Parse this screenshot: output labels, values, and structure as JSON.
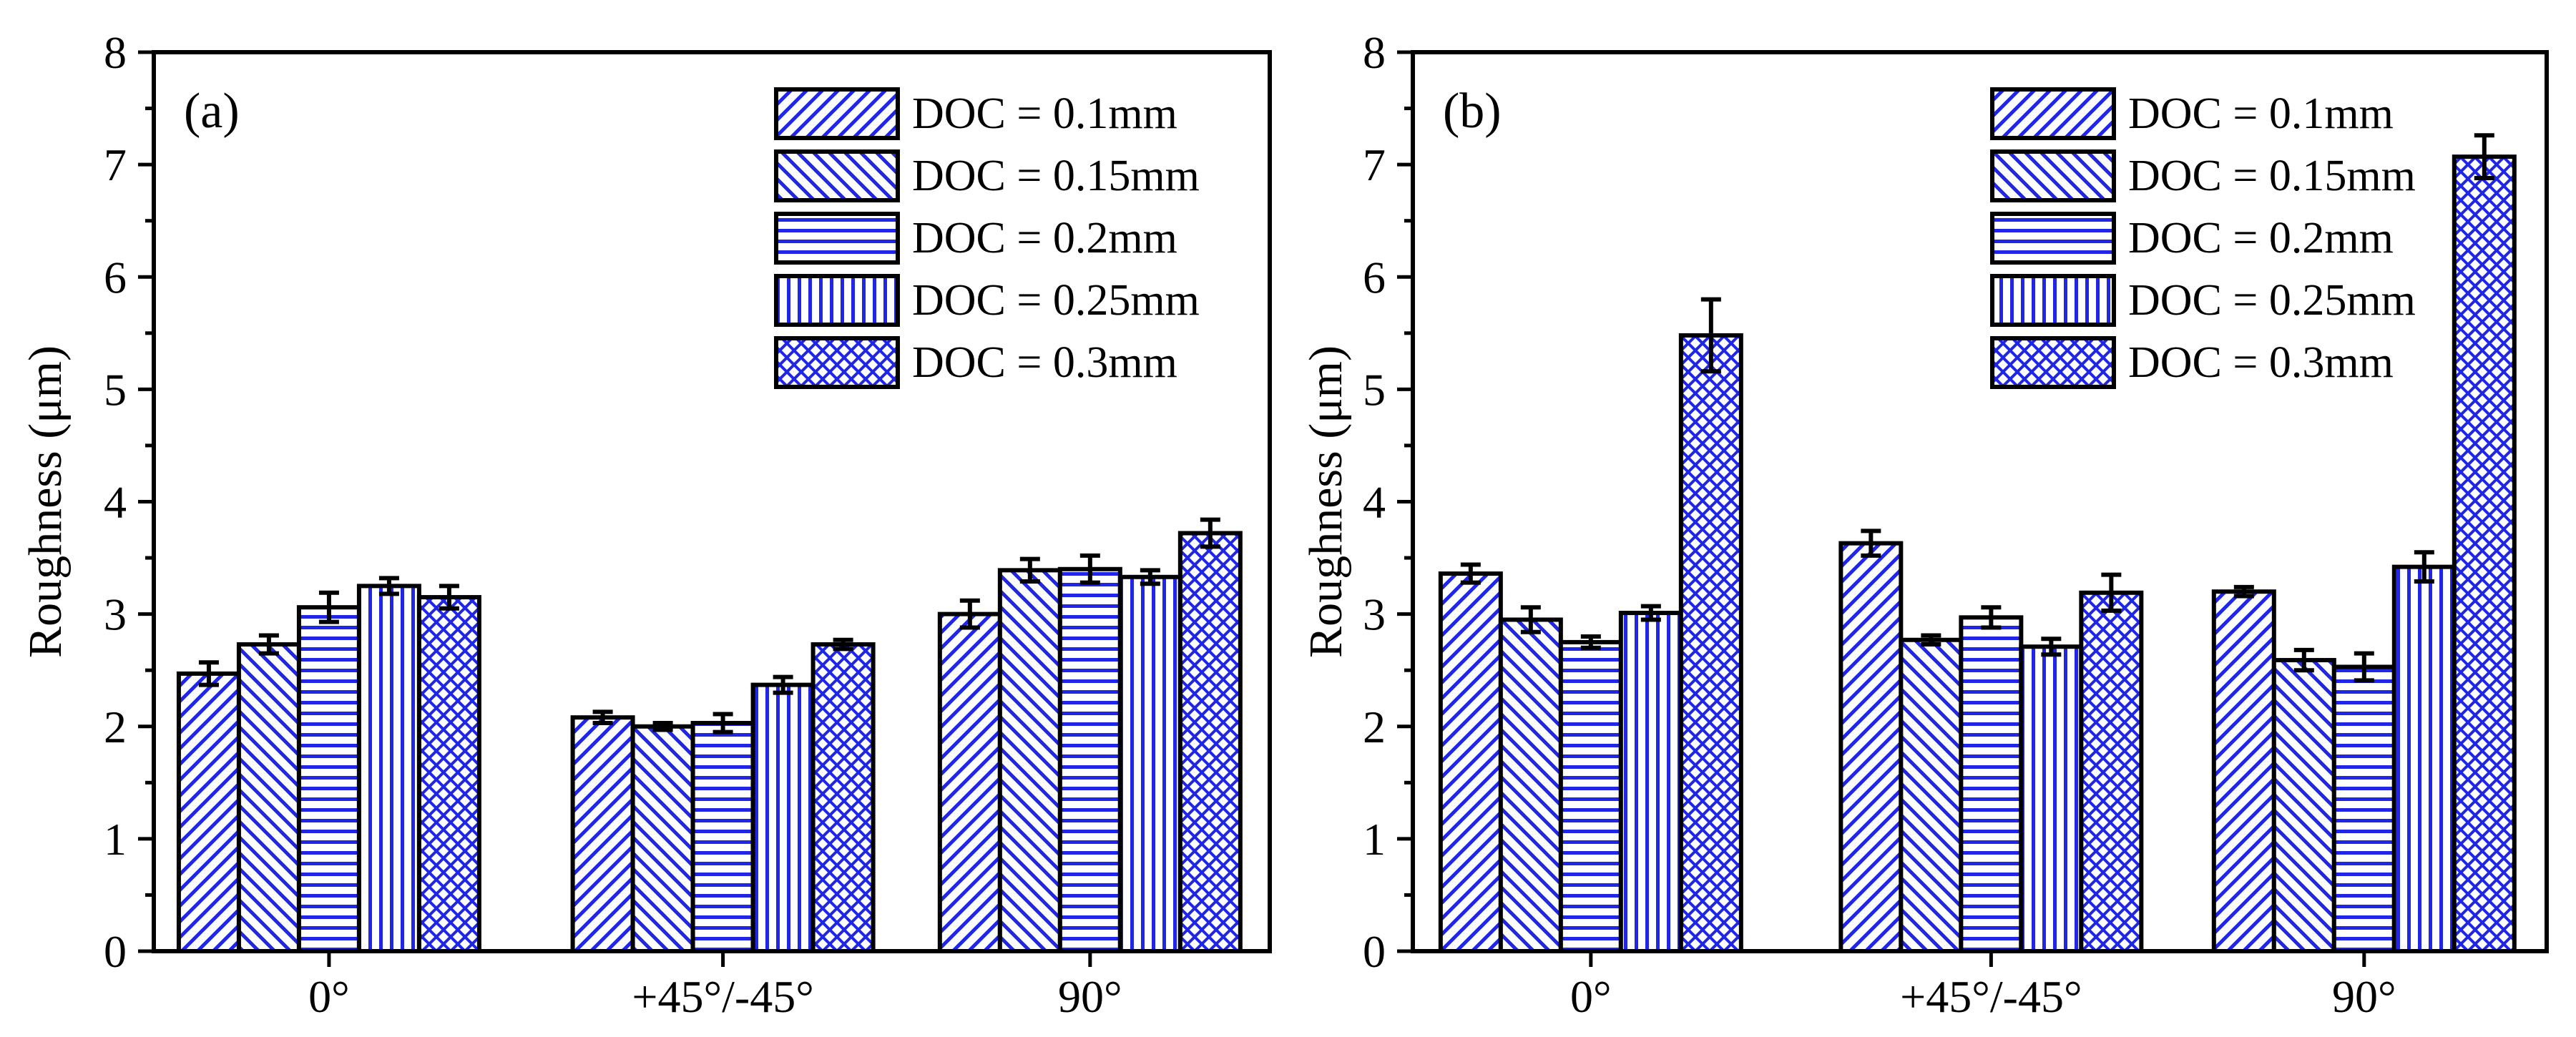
{
  "chart_data": [
    {
      "type": "bar",
      "panel_label": "(a)",
      "ylabel": "Roughness (μm)",
      "xlabel": "",
      "ylim": [
        0,
        8
      ],
      "yticks": [
        "0",
        "1",
        "2",
        "3",
        "4",
        "5",
        "6",
        "7",
        "8"
      ],
      "categories": [
        "0°",
        "+45°/-45°",
        "90°"
      ],
      "legend_position": "top-right",
      "series": [
        {
          "name": "DOC = 0.1mm",
          "pattern": "diag-up",
          "values": [
            2.47,
            2.08,
            3.0
          ],
          "errors": [
            0.1,
            0.05,
            0.12
          ]
        },
        {
          "name": "DOC = 0.15mm",
          "pattern": "diag-down",
          "values": [
            2.73,
            2.0,
            3.39
          ],
          "errors": [
            0.08,
            0.03,
            0.1
          ]
        },
        {
          "name": "DOC = 0.2mm",
          "pattern": "horizontal",
          "values": [
            3.06,
            2.03,
            3.4
          ],
          "errors": [
            0.13,
            0.08,
            0.12
          ]
        },
        {
          "name": "DOC = 0.25mm",
          "pattern": "vertical",
          "values": [
            3.25,
            2.37,
            3.33
          ],
          "errors": [
            0.07,
            0.07,
            0.06
          ]
        },
        {
          "name": "DOC = 0.3mm",
          "pattern": "crosshatch",
          "values": [
            3.15,
            2.73,
            3.72
          ],
          "errors": [
            0.1,
            0.04,
            0.12
          ]
        }
      ]
    },
    {
      "type": "bar",
      "panel_label": "(b)",
      "ylabel": "Roughness (μm)",
      "xlabel": "",
      "ylim": [
        0,
        8
      ],
      "yticks": [
        "0",
        "1",
        "2",
        "3",
        "4",
        "5",
        "6",
        "7",
        "8"
      ],
      "categories": [
        "0°",
        "+45°/-45°",
        "90°"
      ],
      "legend_position": "top-right",
      "series": [
        {
          "name": "DOC = 0.1mm",
          "pattern": "diag-up",
          "values": [
            3.36,
            3.63,
            3.2
          ],
          "errors": [
            0.08,
            0.11,
            0.04
          ]
        },
        {
          "name": "DOC = 0.15mm",
          "pattern": "diag-down",
          "values": [
            2.95,
            2.77,
            2.59
          ],
          "errors": [
            0.11,
            0.04,
            0.09
          ]
        },
        {
          "name": "DOC = 0.2mm",
          "pattern": "horizontal",
          "values": [
            2.75,
            2.97,
            2.53
          ],
          "errors": [
            0.05,
            0.09,
            0.12
          ]
        },
        {
          "name": "DOC = 0.25mm",
          "pattern": "vertical",
          "values": [
            3.01,
            2.71,
            3.42
          ],
          "errors": [
            0.06,
            0.07,
            0.13
          ]
        },
        {
          "name": "DOC = 0.3mm",
          "pattern": "crosshatch",
          "values": [
            5.48,
            3.19,
            7.07
          ],
          "errors": [
            0.32,
            0.16,
            0.19
          ]
        }
      ]
    }
  ],
  "colors": {
    "hatch": "#1f26e6",
    "frame": "#000000",
    "background": "#ffffff"
  }
}
